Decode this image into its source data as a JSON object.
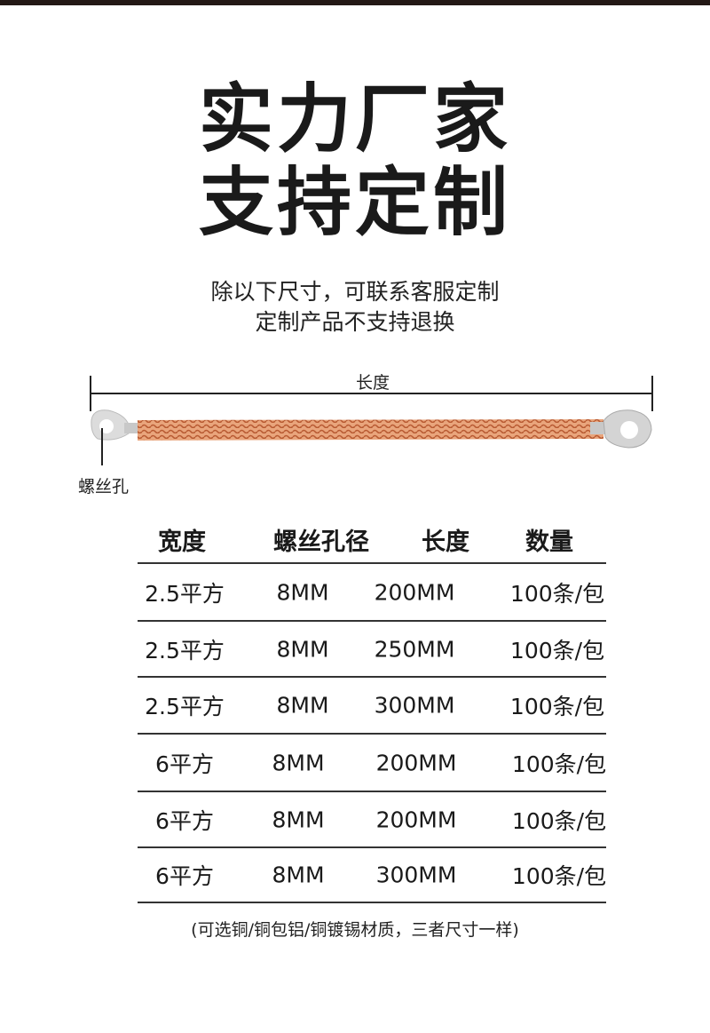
{
  "headline": {
    "line1": "实力厂家",
    "line2": "支持定制"
  },
  "subtitle": {
    "line1": "除以下尺寸，可联系客服定制",
    "line2": "定制产品不支持退换"
  },
  "diagram": {
    "length_label": "长度",
    "hole_label": "螺丝孔",
    "cable_color": "#d98a5c",
    "lug_color": "#d8d8d8"
  },
  "table": {
    "headers": [
      "宽度",
      "螺丝孔径",
      "长度",
      "数量"
    ],
    "rows": [
      [
        "2.5平方",
        "8MM",
        "200MM",
        "100条/包"
      ],
      [
        "2.5平方",
        "8MM",
        "250MM",
        "100条/包"
      ],
      [
        "2.5平方",
        "8MM",
        "300MM",
        "100条/包"
      ],
      [
        "6平方",
        "8MM",
        "200MM",
        "100条/包"
      ],
      [
        "6平方",
        "8MM",
        "200MM",
        "100条/包"
      ],
      [
        "6平方",
        "8MM",
        "300MM",
        "100条/包"
      ]
    ]
  },
  "note": "(可选铜/铜包铝/铜镀锡材质，三者尺寸一样)"
}
